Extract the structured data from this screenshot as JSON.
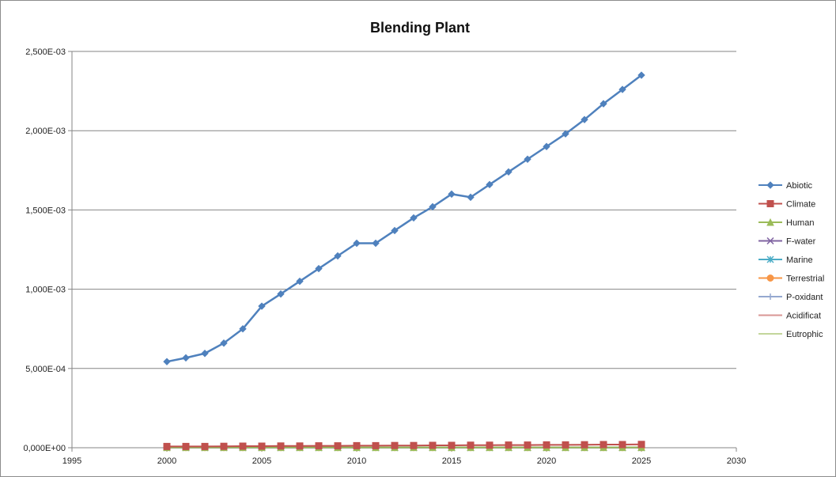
{
  "chart_data": {
    "type": "line",
    "title": "Blending Plant",
    "xlabel": "",
    "ylabel": "",
    "xlim": [
      1995,
      2030
    ],
    "ylim": [
      0,
      0.0025
    ],
    "x_ticks": [
      "1995",
      "2000",
      "2005",
      "2010",
      "2015",
      "2020",
      "2025",
      "2030"
    ],
    "y_ticks": [
      "0,000E+00",
      "5,000E-04",
      "1,000E-03",
      "1,500E-03",
      "2,000E-03",
      "2,500E-03"
    ],
    "grid": "horizontal",
    "legend_position": "right",
    "x": [
      2000,
      2001,
      2002,
      2003,
      2004,
      2005,
      2006,
      2007,
      2008,
      2009,
      2010,
      2011,
      2012,
      2013,
      2014,
      2015,
      2016,
      2017,
      2018,
      2019,
      2020,
      2021,
      2022,
      2023,
      2024,
      2025
    ],
    "series": [
      {
        "name": "Abiotic",
        "color": "#4f81bd",
        "marker": "diamond",
        "values": [
          0.000543,
          0.000567,
          0.000595,
          0.00066,
          0.00075,
          0.000893,
          0.00097,
          0.00105,
          0.00113,
          0.00121,
          0.00129,
          0.00129,
          0.00137,
          0.00145,
          0.00152,
          0.0016,
          0.00158,
          0.00166,
          0.00174,
          0.00182,
          0.0019,
          0.00198,
          0.00207,
          0.00217,
          0.00226,
          0.00235
        ]
      },
      {
        "name": "Climate",
        "color": "#c0504d",
        "marker": "square",
        "values": [
          8e-06,
          8e-06,
          8e-06,
          9e-06,
          1e-05,
          1e-05,
          1.1e-05,
          1.1e-05,
          1.2e-05,
          1.2e-05,
          1.3e-05,
          1.3e-05,
          1.4e-05,
          1.4e-05,
          1.5e-05,
          1.5e-05,
          1.6e-05,
          1.6e-05,
          1.7e-05,
          1.7e-05,
          1.8e-05,
          1.8e-05,
          1.9e-05,
          2e-05,
          2e-05,
          2.1e-05
        ]
      },
      {
        "name": "Human",
        "color": "#9bbb59",
        "marker": "triangle",
        "values": [
          2e-06,
          2e-06,
          2e-06,
          2e-06,
          2e-06,
          2e-06,
          2e-06,
          2e-06,
          2e-06,
          2e-06,
          2e-06,
          2e-06,
          2e-06,
          2e-06,
          2e-06,
          2e-06,
          2e-06,
          2e-06,
          2e-06,
          2e-06,
          2e-06,
          2e-06,
          2e-06,
          2e-06,
          2e-06,
          2e-06
        ]
      },
      {
        "name": "F-water",
        "color": "#8064a2",
        "marker": "x",
        "values": [
          1e-06,
          1e-06,
          1e-06,
          1e-06,
          1e-06,
          1e-06,
          1e-06,
          1e-06,
          1e-06,
          1e-06,
          1e-06,
          1e-06,
          1e-06,
          1e-06,
          1e-06,
          1e-06,
          1e-06,
          1e-06,
          1e-06,
          1e-06,
          1e-06,
          1e-06,
          1e-06,
          1e-06,
          1e-06,
          1e-06
        ]
      },
      {
        "name": "Marine",
        "color": "#4bacc6",
        "marker": "star",
        "values": [
          1e-06,
          1e-06,
          1e-06,
          1e-06,
          1e-06,
          1e-06,
          1e-06,
          1e-06,
          1e-06,
          1e-06,
          1e-06,
          1e-06,
          1e-06,
          1e-06,
          1e-06,
          1e-06,
          1e-06,
          1e-06,
          1e-06,
          1e-06,
          1e-06,
          1e-06,
          1e-06,
          1e-06,
          1e-06,
          1e-06
        ]
      },
      {
        "name": "Terrestrial",
        "color": "#f79646",
        "marker": "circle",
        "values": [
          1e-06,
          1e-06,
          1e-06,
          1e-06,
          1e-06,
          1e-06,
          1e-06,
          1e-06,
          1e-06,
          1e-06,
          1e-06,
          1e-06,
          1e-06,
          1e-06,
          1e-06,
          1e-06,
          1e-06,
          1e-06,
          1e-06,
          1e-06,
          1e-06,
          1e-06,
          1e-06,
          1e-06,
          1e-06,
          1e-06
        ]
      },
      {
        "name": "P-oxidant",
        "color": "#95a8d0",
        "marker": "plus",
        "values": [
          1e-06,
          1e-06,
          1e-06,
          1e-06,
          1e-06,
          1e-06,
          1e-06,
          1e-06,
          1e-06,
          1e-06,
          1e-06,
          1e-06,
          1e-06,
          1e-06,
          1e-06,
          1e-06,
          1e-06,
          1e-06,
          1e-06,
          1e-06,
          1e-06,
          1e-06,
          1e-06,
          1e-06,
          1e-06,
          1e-06
        ]
      },
      {
        "name": "Acidificat",
        "color": "#d99694",
        "marker": "none",
        "values": [
          1e-06,
          1e-06,
          1e-06,
          1e-06,
          1e-06,
          1e-06,
          1e-06,
          1e-06,
          1e-06,
          1e-06,
          1e-06,
          1e-06,
          1e-06,
          1e-06,
          1e-06,
          1e-06,
          1e-06,
          1e-06,
          1e-06,
          1e-06,
          1e-06,
          1e-06,
          1e-06,
          1e-06,
          1e-06,
          1e-06
        ]
      },
      {
        "name": "Eutrophic",
        "color": "#c3d69b",
        "marker": "none",
        "values": [
          1e-06,
          1e-06,
          1e-06,
          1e-06,
          1e-06,
          1e-06,
          1e-06,
          1e-06,
          1e-06,
          1e-06,
          1e-06,
          1e-06,
          1e-06,
          1e-06,
          1e-06,
          1e-06,
          1e-06,
          1e-06,
          1e-06,
          1e-06,
          1e-06,
          1e-06,
          1e-06,
          1e-06,
          1e-06,
          1e-06
        ]
      }
    ]
  }
}
